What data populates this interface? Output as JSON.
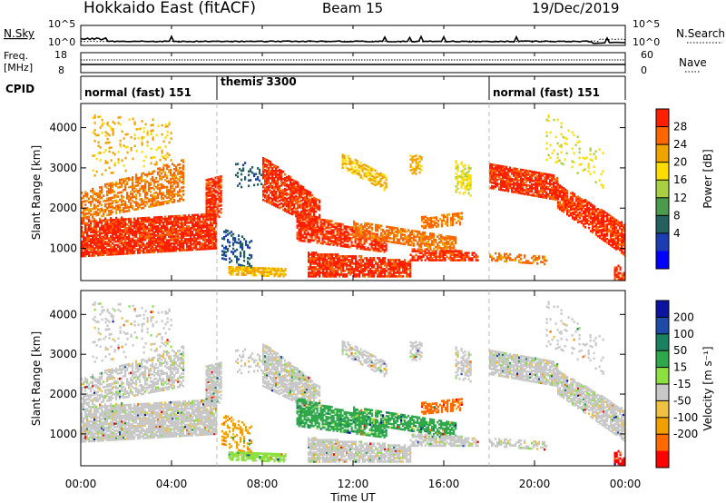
{
  "header": {
    "radar": "Hokkaido East (fitACF)",
    "beam": "Beam 15",
    "date": "19/Dec/2019"
  },
  "strip_nsky": {
    "left_label": "N.Sky",
    "right_label": "N.Search",
    "left_ticks": [
      "10^5",
      "10^0"
    ],
    "right_ticks": [
      "10^5",
      "10^0"
    ]
  },
  "strip_freq": {
    "left_label_1": "Freq.",
    "left_label_2": "[MHz]",
    "right_label": "Nave",
    "left_ticks": [
      "18",
      "8"
    ],
    "right_ticks": [
      "60",
      "0"
    ]
  },
  "cpid": {
    "label": "CPID",
    "segments": [
      {
        "start_h": 0,
        "end_h": 6,
        "name": "normal (fast) 151"
      },
      {
        "start_h": 6,
        "end_h": 18,
        "name": "themis 3300"
      },
      {
        "start_h": 18,
        "end_h": 24,
        "name": "normal (fast) 151"
      }
    ]
  },
  "chart_data": [
    {
      "type": "heatmap",
      "panel": "power",
      "ylabel": "Slant Range [km]",
      "yticks": [
        1000,
        2000,
        3000,
        4000
      ],
      "ylim": [
        200,
        4600
      ],
      "xlim_hours": [
        0,
        24
      ],
      "colorbar_label": "Power [dB]",
      "colorbar_ticks": [
        "28",
        "24",
        "20",
        "16",
        "12",
        "8",
        "4"
      ],
      "colorbar_colors": [
        "#ff1e00",
        "#ff6600",
        "#f0a400",
        "#ffdd00",
        "#a8d040",
        "#4c9a4c",
        "#246060",
        "#1c3cb4",
        "#0000ff"
      ]
    },
    {
      "type": "heatmap",
      "panel": "velocity",
      "ylabel": "Slant Range [km]",
      "yticks": [
        1000,
        2000,
        3000,
        4000
      ],
      "ylim": [
        200,
        4600
      ],
      "xlim_hours": [
        0,
        24
      ],
      "xlabel": "Time UT",
      "xticks": [
        "00:00",
        "04:00",
        "08:00",
        "12:00",
        "16:00",
        "20:00",
        "00:00"
      ],
      "colorbar_label": "Velocity [m s⁻¹]",
      "colorbar_ticks": [
        "200",
        "100",
        "50",
        "15",
        "-15",
        "-50",
        "-100",
        "-200"
      ],
      "colorbar_colors": [
        "#0a14a0",
        "#1e4aa8",
        "#1a8060",
        "#2ea84a",
        "#8ce040",
        "#c8c8c8",
        "#f0c040",
        "#f0a000",
        "#ff6a00",
        "#ff0000"
      ]
    }
  ]
}
